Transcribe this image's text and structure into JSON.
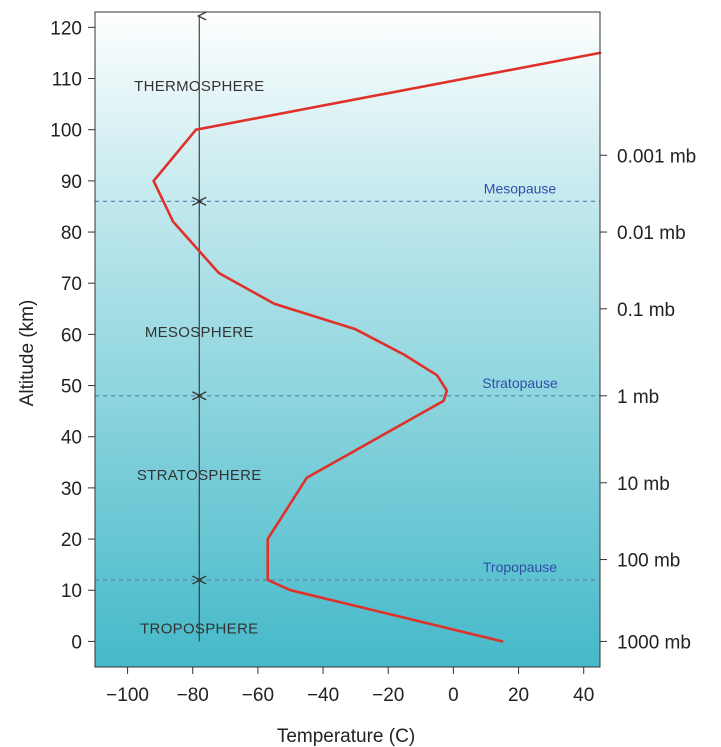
{
  "chart_data": {
    "type": "line",
    "title": "",
    "xlabel": "Temperature (C)",
    "ylabel": "Altitude (km)",
    "xlim": [
      -110,
      45
    ],
    "ylim": [
      -5,
      123
    ],
    "x_ticks": [
      -100,
      -80,
      -60,
      -40,
      -20,
      0,
      20,
      40
    ],
    "y_ticks": [
      0,
      10,
      20,
      30,
      40,
      50,
      60,
      70,
      80,
      90,
      100,
      110,
      120
    ],
    "x_tick_labels": [
      "−100",
      "−80",
      "−60",
      "−40",
      "−20",
      "0",
      "20",
      "40"
    ],
    "y_tick_labels": [
      "0",
      "10",
      "20",
      "30",
      "40",
      "50",
      "60",
      "70",
      "80",
      "90",
      "100",
      "110",
      "120"
    ],
    "grid": false,
    "series": [
      {
        "color": "#e0302a",
        "x": [
          15,
          -50,
          -57,
          -57,
          -45,
          -3,
          -2,
          -5,
          -15,
          -30,
          -55,
          -72,
          -86,
          -89,
          -92,
          -79,
          45
        ],
        "y": [
          0,
          10,
          12,
          20,
          32,
          47,
          49,
          52,
          56,
          61,
          66,
          72,
          82,
          86,
          90,
          100,
          115
        ]
      }
    ],
    "pressure_axis": {
      "labels": [
        "1000 mb",
        "100 mb",
        "10 mb",
        "1 mb",
        "0.1 mb",
        "0.01 mb",
        "0.001 mb"
      ],
      "altitudes": [
        0,
        16,
        31,
        48,
        65,
        80,
        95
      ]
    },
    "boundaries": [
      {
        "name": "Tropopause",
        "altitude": 12
      },
      {
        "name": "Stratopause",
        "altitude": 48
      },
      {
        "name": "Mesopause",
        "altitude": 86
      }
    ],
    "layers": [
      {
        "name": "TROPOSPHERE",
        "altitude": 2.5
      },
      {
        "name": "STRATOSPHERE",
        "altitude": 32.5
      },
      {
        "name": "MESOSPHERE",
        "altitude": 60.5
      },
      {
        "name": "THERMOSPHERE",
        "altitude": 108.5
      }
    ],
    "layer_marker_temperature": -78,
    "colors": {
      "background_top": "#ffffff",
      "background_mid": "#b6e4ea",
      "background_bottom": "#45b9c9",
      "boundary": "#5a7fae",
      "marker": "#333333"
    }
  }
}
